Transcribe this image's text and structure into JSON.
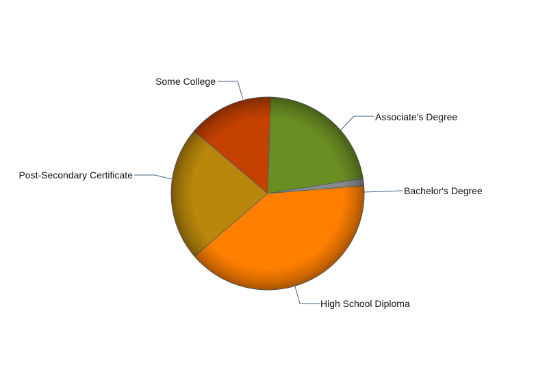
{
  "chart_data": {
    "type": "pie",
    "start_angle_deg": 4.7,
    "direction": "counterclockwise",
    "legend": "none",
    "slices": [
      {
        "label": "Bachelor's Degree",
        "value": 1.2,
        "color": "#8A8A8A"
      },
      {
        "label": "Associate's Degree",
        "value": 22.0,
        "color": "#6B8E23"
      },
      {
        "label": "Some College",
        "value": 14.3,
        "color": "#C44100"
      },
      {
        "label": "Post-Secondary Certificate",
        "value": 22.5,
        "color": "#B8860B"
      },
      {
        "label": "High School Diploma",
        "value": 40.0,
        "color": "#FF7F00"
      }
    ]
  }
}
